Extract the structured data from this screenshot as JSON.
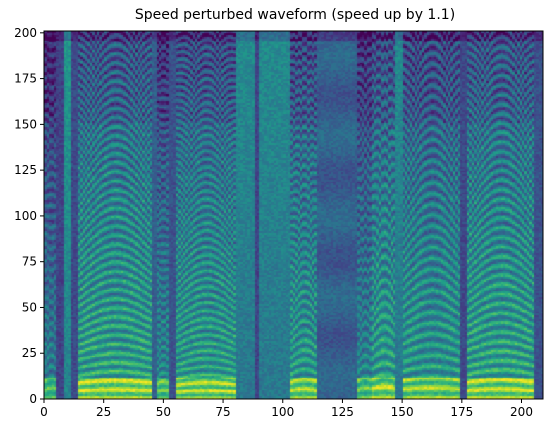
{
  "chart_data": {
    "type": "heatmap",
    "title": "Speed perturbed waveform (speed up by 1.1)",
    "xlabel": "",
    "ylabel": "",
    "xlim": [
      0,
      209
    ],
    "ylim": [
      0,
      201
    ],
    "x_ticks": [
      0,
      25,
      50,
      75,
      100,
      125,
      150,
      175,
      200
    ],
    "y_ticks": [
      0,
      25,
      50,
      75,
      100,
      125,
      150,
      175,
      200
    ],
    "colormap": "viridis",
    "grid": false,
    "frames": 209,
    "bins": 201,
    "segments": [
      {
        "type": "voiced",
        "x_start": 0,
        "x_end": 5,
        "f0_bins": 5.0,
        "level": 0.55
      },
      {
        "type": "silence",
        "x_start": 5,
        "x_end": 8,
        "level": 0.2
      },
      {
        "type": "unvoiced",
        "x_start": 8,
        "x_end": 11,
        "level": 0.45
      },
      {
        "type": "silence",
        "x_start": 11,
        "x_end": 14,
        "level": 0.22
      },
      {
        "type": "voiced",
        "x_start": 14,
        "x_end": 45,
        "f0_bins": 4.2,
        "level": 0.75
      },
      {
        "type": "silence",
        "x_start": 45,
        "x_end": 47,
        "level": 0.3
      },
      {
        "type": "voiced",
        "x_start": 47,
        "x_end": 52,
        "f0_bins": 4.0,
        "level": 0.6
      },
      {
        "type": "silence",
        "x_start": 52,
        "x_end": 55,
        "level": 0.25
      },
      {
        "type": "voiced",
        "x_start": 55,
        "x_end": 80,
        "f0_bins": 3.7,
        "level": 0.72
      },
      {
        "type": "unvoiced",
        "x_start": 80,
        "x_end": 88,
        "level": 0.4
      },
      {
        "type": "silence",
        "x_start": 88,
        "x_end": 90,
        "level": 0.2
      },
      {
        "type": "unvoiced",
        "x_start": 90,
        "x_end": 103,
        "level": 0.4
      },
      {
        "type": "voiced",
        "x_start": 103,
        "x_end": 114,
        "f0_bins": 4.5,
        "level": 0.7
      },
      {
        "type": "unvoiced_dark",
        "x_start": 114,
        "x_end": 131,
        "level": 0.3
      },
      {
        "type": "voiced",
        "x_start": 131,
        "x_end": 137,
        "f0_bins": 5.0,
        "level": 0.6
      },
      {
        "type": "voiced",
        "x_start": 137,
        "x_end": 147,
        "f0_bins": 5.5,
        "level": 0.72
      },
      {
        "type": "unvoiced",
        "x_start": 147,
        "x_end": 150,
        "level": 0.4
      },
      {
        "type": "voiced",
        "x_start": 150,
        "x_end": 174,
        "f0_bins": 5.0,
        "level": 0.7
      },
      {
        "type": "silence",
        "x_start": 174,
        "x_end": 177,
        "level": 0.22
      },
      {
        "type": "voiced",
        "x_start": 177,
        "x_end": 205,
        "f0_bins": 4.4,
        "level": 0.75
      },
      {
        "type": "silence",
        "x_start": 205,
        "x_end": 209,
        "level": 0.25
      }
    ]
  }
}
